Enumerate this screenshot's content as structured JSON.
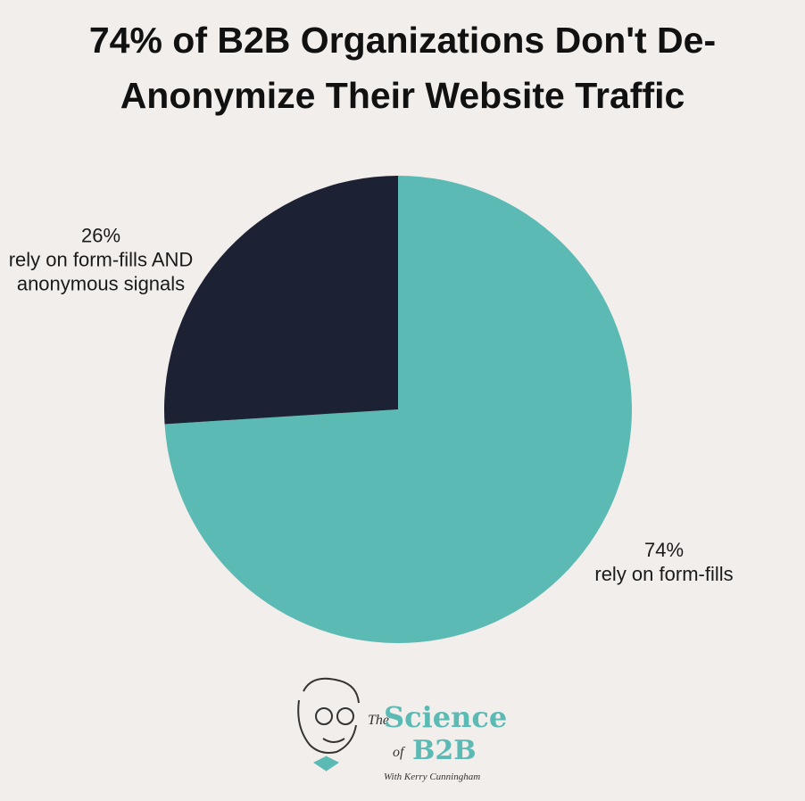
{
  "chart_data": {
    "type": "pie",
    "title": "74% of B2B Organizations Don't De-Anonymize Their Website Traffic",
    "categories": [
      "rely on form-fills",
      "rely on form-fills AND anonymous signals"
    ],
    "values": [
      74,
      26
    ],
    "value_labels": [
      "74%",
      "26%"
    ],
    "colors": [
      "#5cbab4",
      "#1c2233"
    ]
  },
  "logo": {
    "the": "The",
    "science": "Science",
    "of": "of",
    "b2b": "B2B",
    "with": "With Kerry Cunningham"
  }
}
